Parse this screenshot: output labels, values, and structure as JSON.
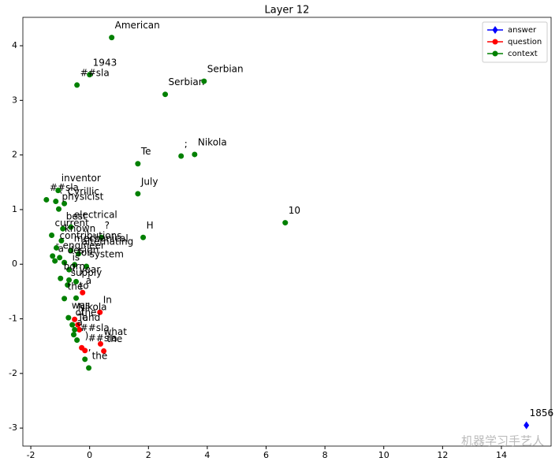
{
  "chart_data": {
    "type": "scatter",
    "title": "Layer 12",
    "xlim": [
      -2.27,
      15.69
    ],
    "ylim": [
      -3.33,
      4.52
    ],
    "xticks": [
      -2,
      0,
      2,
      4,
      6,
      8,
      10,
      12,
      14
    ],
    "yticks": [
      -3,
      -2,
      -1,
      0,
      1,
      2,
      3,
      4
    ],
    "legend": "upper right",
    "series": [
      {
        "name": "answer",
        "color": "#0000ff",
        "marker": "diamond",
        "x": [
          14.85
        ],
        "y": [
          -2.95
        ],
        "labels": [
          "1856"
        ]
      },
      {
        "name": "question",
        "color": "#ff0000",
        "marker": "circle",
        "x": [
          -0.24,
          0.35,
          -0.51,
          -0.4,
          -0.35,
          0.37,
          0.48,
          -0.27,
          -0.16
        ],
        "y": [
          -0.52,
          -0.88,
          -1.01,
          -1.11,
          -1.2,
          -1.46,
          -1.59,
          -1.53,
          -1.58
        ],
        "labels": [
          "a",
          "In",
          "Nikola",
          "the",
          "and",
          "what",
          "the",
          ")",
          "##sla"
        ]
      },
      {
        "name": "context",
        "color": "#008000",
        "marker": "circle",
        "x": [
          0.75,
          0.0,
          -0.43,
          2.57,
          3.89,
          1.64,
          3.11,
          3.57,
          1.64,
          1.82,
          6.65,
          -1.47,
          -1.15,
          -1.07,
          -0.86,
          -1.05,
          -0.91,
          -1.29,
          -0.64,
          0.4,
          -0.96,
          -1.13,
          -0.64,
          -0.38,
          -1.26,
          -1.02,
          -1.18,
          -0.86,
          -0.51,
          -0.11,
          -0.7,
          -0.99,
          -0.7,
          -0.46,
          -0.75,
          -0.86,
          -0.46,
          -0.72,
          -0.59,
          -0.51,
          -0.54,
          -0.43,
          -0.16,
          -0.03
        ],
        "y": [
          4.15,
          3.47,
          3.28,
          3.11,
          3.35,
          1.84,
          1.98,
          2.01,
          1.29,
          0.49,
          0.76,
          1.18,
          1.15,
          1.35,
          1.11,
          1.01,
          0.65,
          0.53,
          0.68,
          0.49,
          0.43,
          0.3,
          0.25,
          0.19,
          0.15,
          0.12,
          0.06,
          0.03,
          -0.01,
          -0.04,
          -0.1,
          -0.26,
          -0.29,
          -0.32,
          -0.38,
          -0.63,
          -0.62,
          -0.98,
          -1.11,
          -1.2,
          -1.29,
          -1.39,
          -1.74,
          -1.9
        ],
        "labels": [
          "American",
          "1943",
          "##sla",
          "Serbian",
          "Serbian",
          "Te",
          ";",
          "Nikola",
          "July",
          "H",
          "10",
          "##sla",
          "(",
          "inventor",
          "Cyrillic",
          "physicist",
          "best",
          "current",
          "electrical",
          "?",
          "known",
          "contributions",
          "mechanical",
          "alternating",
          "-",
          "engineer",
          "a",
          "design",
          "for",
          "system",
          "is",
          "born",
          "(",
          "year",
          "supply",
          "the",
          "to",
          "was",
          "of",
          "Te",
          "a",
          "##sla",
          ",",
          "the"
        ]
      }
    ]
  },
  "watermark": "机器学习手艺人"
}
